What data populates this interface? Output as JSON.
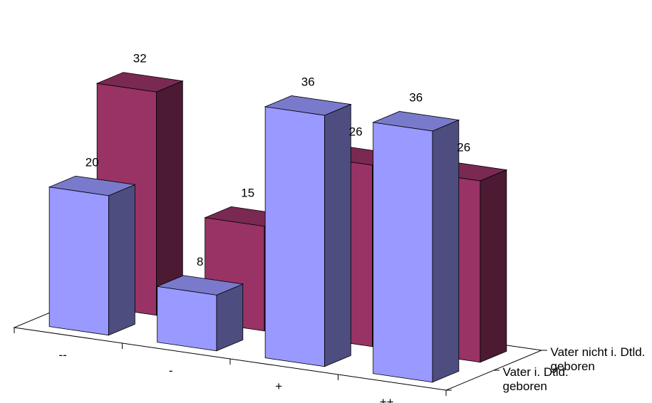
{
  "chart_data": {
    "type": "bar",
    "style": "3d-column",
    "title": "",
    "xlabel": "",
    "ylabel": "",
    "categories": [
      "--",
      "-",
      "+",
      "++"
    ],
    "series": [
      {
        "name": "Vater i. Dtld. geboren",
        "values": [
          20,
          8,
          36,
          36
        ],
        "color": "#9999ff"
      },
      {
        "name": "Vater nicht i. Dtld. geboren",
        "values": [
          32,
          15,
          26,
          26
        ],
        "color": "#993366"
      }
    ],
    "series_labels_wrapped": [
      [
        "Vater i. Dtld.",
        "geboren"
      ],
      [
        "Vater nicht i. Dtld.",
        "geboren"
      ]
    ],
    "ylim": [
      0,
      40
    ],
    "grid": false,
    "legend": "right-depth-axis"
  }
}
